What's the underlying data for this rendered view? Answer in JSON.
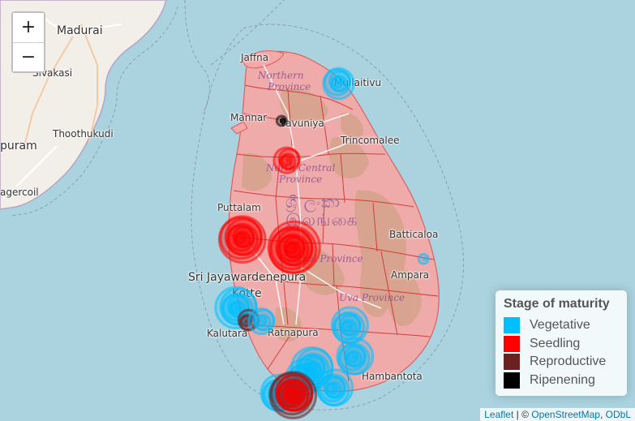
{
  "places": [
    {
      "id": "madurai",
      "name": "Madurai"
    },
    {
      "id": "sivakasi",
      "name": "Sivakasi"
    },
    {
      "id": "thoothukudi",
      "name": "Thoothukudi"
    },
    {
      "id": "puram",
      "name": "puram"
    },
    {
      "id": "nagercoil",
      "name": "agercoil"
    },
    {
      "id": "jaffna",
      "name": "Jaffna"
    },
    {
      "id": "mullaitivu",
      "name": "Mullaitivu"
    },
    {
      "id": "mannar",
      "name": "Mannar"
    },
    {
      "id": "vavuniya",
      "name": "Vavuniya"
    },
    {
      "id": "trincomalee",
      "name": "Trincomalee"
    },
    {
      "id": "puttalam",
      "name": "Puttalam"
    },
    {
      "id": "batticaloa",
      "name": "Batticaloa"
    },
    {
      "id": "ampara",
      "name": "Ampara"
    },
    {
      "id": "sri-jayawardenepura",
      "name": "Sri Jayawardenepura"
    },
    {
      "id": "kotte",
      "name": "Kotte"
    },
    {
      "id": "kalutara",
      "name": "Kalutara"
    },
    {
      "id": "ratnapura",
      "name": "Ratnapura"
    },
    {
      "id": "hambantota",
      "name": "Hambantota"
    }
  ],
  "provinces": [
    {
      "id": "northern",
      "line1": "Northern",
      "line2": "Province"
    },
    {
      "id": "north-central",
      "line1": "North Central",
      "line2": "Province"
    },
    {
      "id": "central",
      "line1": "Central Province",
      "line2": ""
    },
    {
      "id": "uva",
      "line1": "Uva Province",
      "line2": ""
    }
  ],
  "country_label": {
    "line1": "ශ්‍රී ලංකා",
    "line2": "இலங்கை"
  },
  "zoom": {
    "in": "+",
    "out": "−"
  },
  "legend": {
    "title": "Stage of maturity",
    "items": [
      {
        "label": "Vegetative",
        "color": "#00bfff"
      },
      {
        "label": "Seedling",
        "color": "#ff0000"
      },
      {
        "label": "Reproductive",
        "color": "#6b2120"
      },
      {
        "label": "Ripenening",
        "color": "#000000"
      }
    ]
  },
  "attribution": {
    "leaflet": "Leaflet",
    "sep": " | © ",
    "osm": "OpenStreetMap",
    "sep2": ", ",
    "odbl": "ODbL"
  },
  "markers": [
    {
      "stage": "Vegetative",
      "lat": 9.05,
      "lon": 80.9,
      "count": 5
    },
    {
      "stage": "Ripenening",
      "lat": 8.68,
      "lon": 80.35,
      "count": 1
    },
    {
      "stage": "Seedling",
      "lat": 8.3,
      "lon": 80.4,
      "count": 4
    },
    {
      "stage": "Seedling",
      "lat": 7.55,
      "lon": 79.95,
      "count": 8
    },
    {
      "stage": "Seedling",
      "lat": 7.45,
      "lon": 80.45,
      "count": 9
    },
    {
      "stage": "Vegetative",
      "lat": 7.35,
      "lon": 81.75,
      "count": 1
    },
    {
      "stage": "Vegetative",
      "lat": 6.88,
      "lon": 79.9,
      "count": 7
    },
    {
      "stage": "Reproductive",
      "lat": 6.75,
      "lon": 80.0,
      "count": 3
    },
    {
      "stage": "Vegetative",
      "lat": 6.75,
      "lon": 80.15,
      "count": 4
    },
    {
      "stage": "Vegetative",
      "lat": 6.7,
      "lon": 81.0,
      "count": 6
    },
    {
      "stage": "Vegetative",
      "lat": 6.4,
      "lon": 81.05,
      "count": 6
    },
    {
      "stage": "Vegetative",
      "lat": 6.3,
      "lon": 80.65,
      "count": 7
    },
    {
      "stage": "Vegetative",
      "lat": 6.2,
      "lon": 80.55,
      "count": 6
    },
    {
      "stage": "Vegetative",
      "lat": 6.1,
      "lon": 80.85,
      "count": 6
    },
    {
      "stage": "Vegetative",
      "lat": 6.05,
      "lon": 80.3,
      "count": 6
    },
    {
      "stage": "Reproductive",
      "lat": 6.05,
      "lon": 80.45,
      "count": 8
    },
    {
      "stage": "Seedling",
      "lat": 6.05,
      "lon": 80.45,
      "count": 6
    }
  ]
}
